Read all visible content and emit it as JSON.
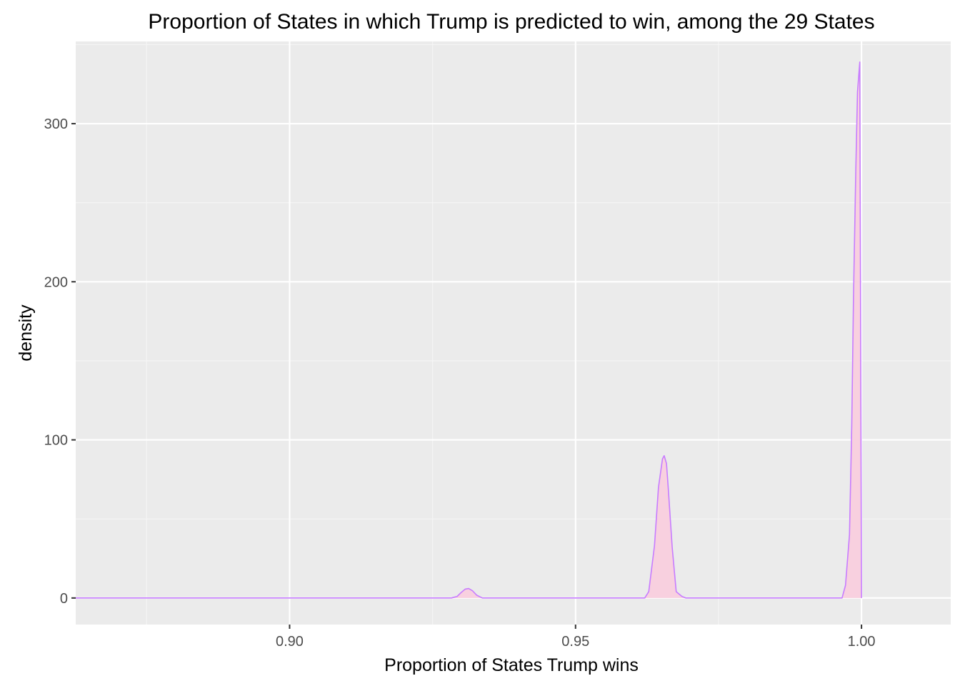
{
  "chart_data": {
    "type": "area",
    "title": "Proportion of States in which Trump is predicted to win, among the 29 States",
    "xlabel": "Proportion of States Trump wins",
    "ylabel": "density",
    "xlim": [
      0.8626,
      1.0156
    ],
    "ylim": [
      -16.8,
      352
    ],
    "x_ticks": [
      0.9,
      0.95,
      1.0
    ],
    "x_tick_labels": [
      "0.90",
      "0.95",
      "1.00"
    ],
    "y_ticks": [
      0,
      100,
      200,
      300
    ],
    "y_tick_labels": [
      "0",
      "100",
      "200",
      "300"
    ],
    "grid": true,
    "legend": "none",
    "series": [
      {
        "x": [
          0.8621,
          0.9283,
          0.9293,
          0.93,
          0.9307,
          0.9313,
          0.932,
          0.9327,
          0.9337,
          0.9621,
          0.9628,
          0.9638,
          0.9645,
          0.9652,
          0.9655,
          0.9659,
          0.9662,
          0.9669,
          0.9676,
          0.9686,
          0.9693,
          0.9966,
          0.9972,
          0.9979,
          0.9983,
          0.9986,
          0.999,
          0.9993,
          0.9997,
          1.0
        ],
        "y": [
          0,
          0,
          1.0,
          3.5,
          5.6,
          6.0,
          4.5,
          1.8,
          0,
          0,
          4,
          33,
          70,
          88,
          90,
          85,
          70,
          32,
          4,
          1,
          0,
          0,
          8,
          40,
          110,
          190,
          270,
          320,
          339,
          0
        ]
      }
    ],
    "colors": {
      "panel": "#ebebeb",
      "grid_major": "#ffffff",
      "grid_minor": "#f5f5f5",
      "line": "#c77cff",
      "fill": "#f8d0df"
    }
  }
}
